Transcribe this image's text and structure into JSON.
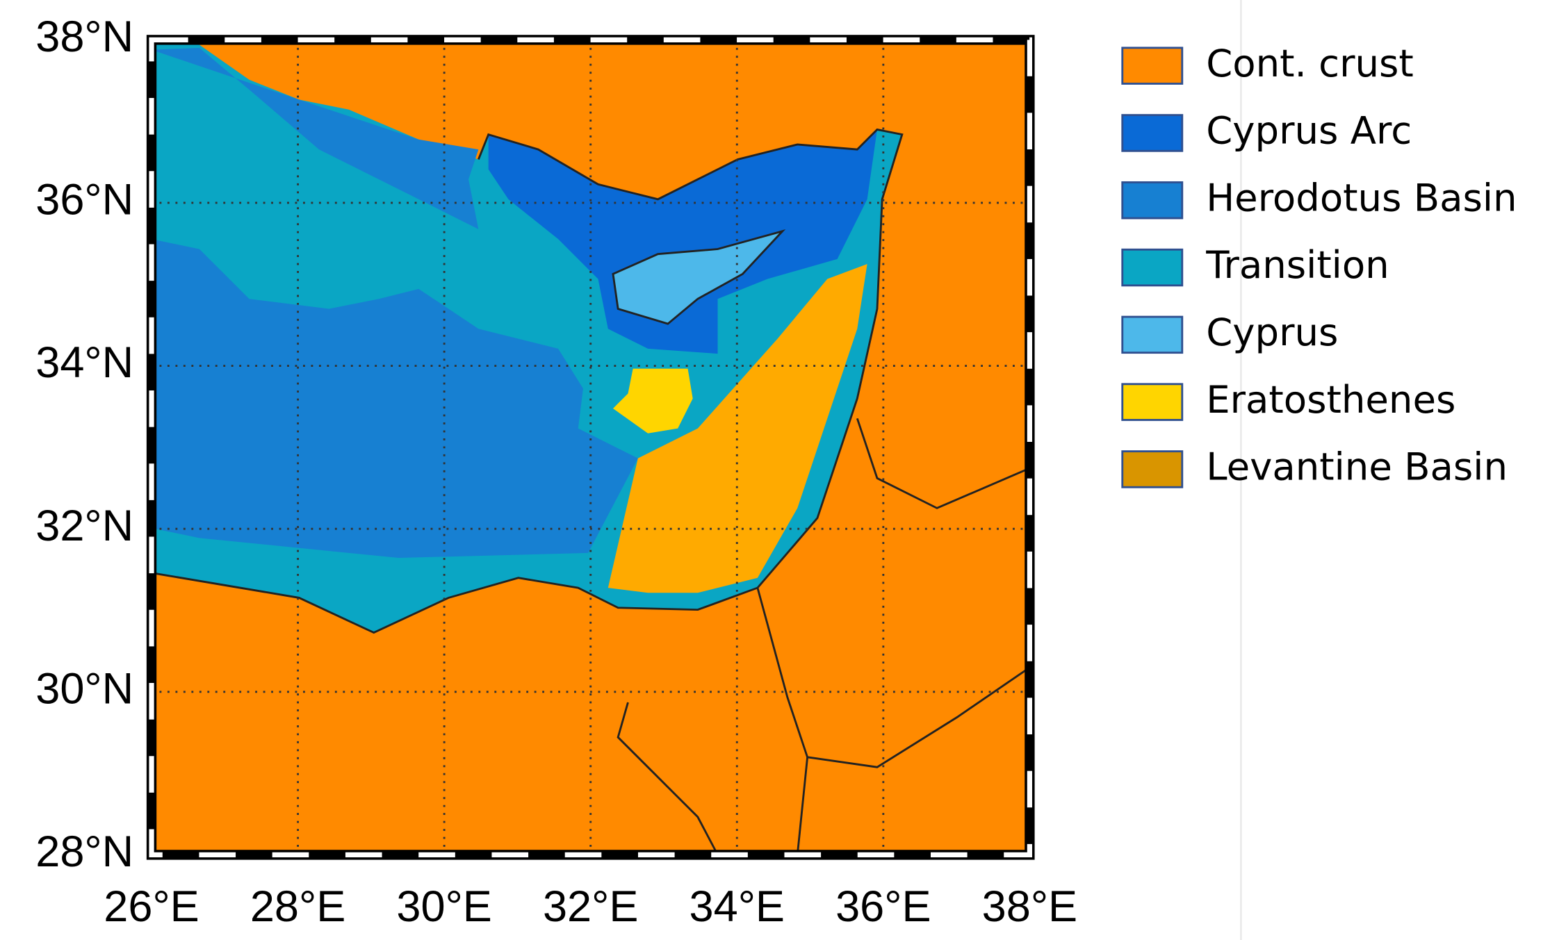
{
  "chart_data": {
    "type": "map",
    "xlim": [
      26,
      38
    ],
    "ylim": [
      28,
      38
    ],
    "xticks": [
      {
        "value": 26,
        "label": "26°E"
      },
      {
        "value": 28,
        "label": "28°E"
      },
      {
        "value": 30,
        "label": "30°E"
      },
      {
        "value": 32,
        "label": "32°E"
      },
      {
        "value": 34,
        "label": "34°E"
      },
      {
        "value": 36,
        "label": "36°E"
      },
      {
        "value": 38,
        "label": "38°E"
      }
    ],
    "yticks": [
      {
        "value": 28,
        "label": "28°N"
      },
      {
        "value": 30,
        "label": "30°N"
      },
      {
        "value": 32,
        "label": "32°N"
      },
      {
        "value": 34,
        "label": "34°N"
      },
      {
        "value": 36,
        "label": "36°N"
      },
      {
        "value": 38,
        "label": "38°N"
      }
    ],
    "grid": true,
    "legend": [
      {
        "name": "Cont. crust",
        "color": "#ff8a00"
      },
      {
        "name": "Cyprus Arc",
        "color": "#0a6ad6"
      },
      {
        "name": "Herodotus Basin",
        "color": "#1780d2"
      },
      {
        "name": "Transition",
        "color": "#0aa6c4"
      },
      {
        "name": "Cyprus",
        "color": "#4db8ea"
      },
      {
        "name": "Eratosthenes",
        "color": "#ffd500"
      },
      {
        "name": "Levantine Basin",
        "color": "#d99500"
      }
    ]
  }
}
